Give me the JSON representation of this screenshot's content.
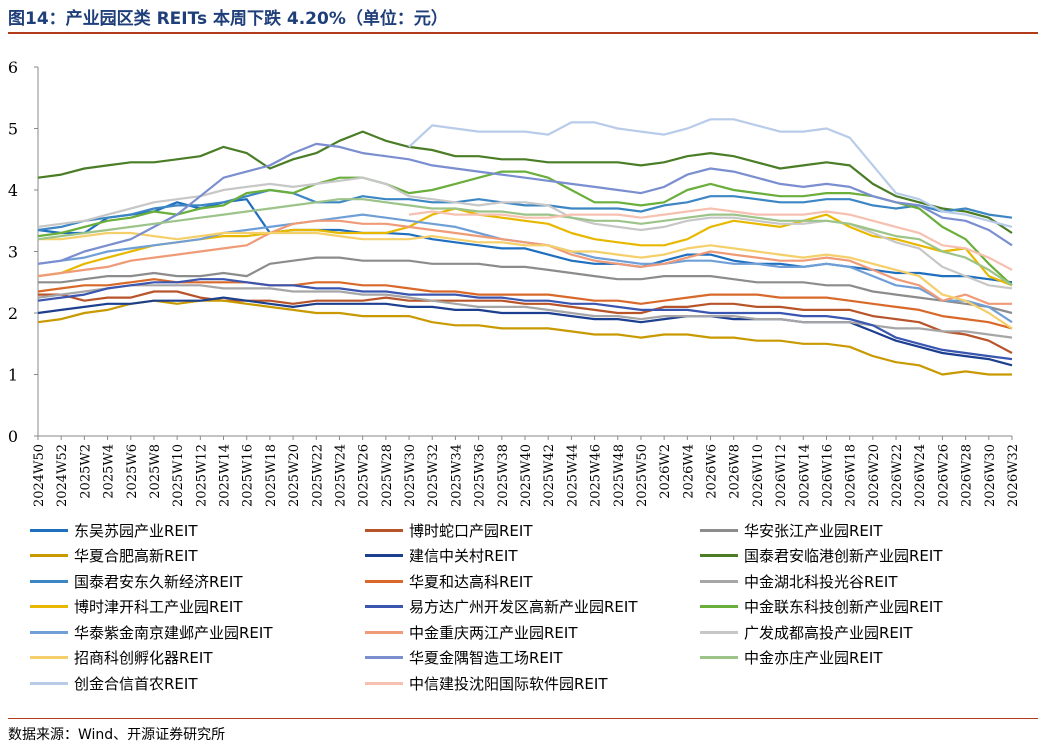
{
  "header": {
    "title": "图14：产业园区类 REITs 本周下跌 4.20%（单位：元）"
  },
  "footer": {
    "source": "数据来源：Wind、开源证券研究所"
  },
  "chart_data": {
    "type": "line",
    "title": "图14：产业园区类 REITs 本周下跌 4.20%（单位：元）",
    "xlabel": "",
    "ylabel": "",
    "ylim": [
      0,
      6
    ],
    "yticks": [
      "0",
      "1",
      "2",
      "3",
      "4",
      "5",
      "6"
    ],
    "xlabels": [
      "2024W50",
      "2024W52",
      "2025W2",
      "2025W4",
      "2025W6",
      "2025W8",
      "2025W10",
      "2025W12",
      "2025W14",
      "2025W16",
      "2025W18",
      "2025W20",
      "2025W22",
      "2025W24",
      "2025W26",
      "2025W28",
      "2025W30",
      "2025W32",
      "2025W34",
      "2025W36",
      "2025W38",
      "2025W40",
      "2025W42",
      "2025W44",
      "2025W46",
      "2025W48",
      "2025W50",
      "2026W2",
      "2026W4",
      "2026W6",
      "2026W8",
      "2026W10",
      "2026W12",
      "2026W14",
      "2026W16",
      "2026W18",
      "2026W20",
      "2026W22",
      "2026W24",
      "2026W26",
      "2026W28",
      "2026W30",
      "2026W32"
    ],
    "grid": false,
    "legend_position": "bottom",
    "series": [
      {
        "name": "东吴苏园产业REIT",
        "color": "#1f6fbf",
        "values": [
          3.35,
          3.3,
          3.3,
          3.55,
          3.6,
          3.65,
          3.8,
          3.7,
          3.8,
          3.85,
          3.3,
          3.35,
          3.35,
          3.35,
          3.3,
          3.3,
          3.28,
          3.2,
          3.15,
          3.1,
          3.05,
          3.05,
          2.95,
          2.85,
          2.8,
          2.8,
          2.75,
          2.85,
          2.95,
          2.95,
          2.85,
          2.8,
          2.8,
          2.75,
          2.8,
          2.75,
          2.7,
          2.65,
          2.65,
          2.6,
          2.6,
          2.55,
          2.5
        ]
      },
      {
        "name": "博时蛇口产园REIT",
        "color": "#b8542a",
        "values": [
          2.3,
          2.3,
          2.2,
          2.25,
          2.25,
          2.35,
          2.35,
          2.25,
          2.2,
          2.2,
          2.2,
          2.15,
          2.2,
          2.2,
          2.2,
          2.25,
          2.2,
          2.2,
          2.2,
          2.2,
          2.2,
          2.15,
          2.15,
          2.1,
          2.05,
          2.0,
          2.0,
          2.1,
          2.1,
          2.15,
          2.15,
          2.1,
          2.1,
          2.05,
          2.05,
          2.05,
          1.95,
          1.9,
          1.85,
          1.7,
          1.65,
          1.55,
          1.35
        ]
      },
      {
        "name": "华安张江产业园REIT",
        "color": "#8c8c8c",
        "values": [
          2.5,
          2.5,
          2.55,
          2.6,
          2.6,
          2.65,
          2.6,
          2.6,
          2.65,
          2.6,
          2.8,
          2.85,
          2.9,
          2.9,
          2.85,
          2.85,
          2.85,
          2.8,
          2.8,
          2.8,
          2.75,
          2.75,
          2.7,
          2.65,
          2.6,
          2.55,
          2.55,
          2.6,
          2.6,
          2.6,
          2.55,
          2.5,
          2.5,
          2.5,
          2.45,
          2.45,
          2.35,
          2.3,
          2.25,
          2.2,
          2.15,
          2.1,
          2.0
        ]
      },
      {
        "name": "华夏合肥高新REIT",
        "color": "#c99a00",
        "values": [
          1.85,
          1.9,
          2.0,
          2.05,
          2.15,
          2.2,
          2.15,
          2.2,
          2.2,
          2.15,
          2.1,
          2.05,
          2.0,
          2.0,
          1.95,
          1.95,
          1.95,
          1.85,
          1.8,
          1.8,
          1.75,
          1.75,
          1.75,
          1.7,
          1.65,
          1.65,
          1.6,
          1.65,
          1.65,
          1.6,
          1.6,
          1.55,
          1.55,
          1.5,
          1.5,
          1.45,
          1.3,
          1.2,
          1.15,
          1.0,
          1.05,
          1.0,
          1.0
        ]
      },
      {
        "name": "建信中关村REIT",
        "color": "#1d3f8f",
        "values": [
          2.0,
          2.05,
          2.1,
          2.15,
          2.15,
          2.2,
          2.2,
          2.2,
          2.25,
          2.2,
          2.15,
          2.1,
          2.15,
          2.15,
          2.15,
          2.15,
          2.1,
          2.1,
          2.05,
          2.05,
          2.0,
          2.0,
          2.0,
          1.95,
          1.9,
          1.9,
          1.85,
          1.9,
          1.95,
          1.95,
          1.9,
          1.9,
          1.9,
          1.85,
          1.85,
          1.85,
          1.7,
          1.55,
          1.45,
          1.35,
          1.3,
          1.25,
          1.15
        ]
      },
      {
        "name": "国泰君安临港创新产业园REIT",
        "color": "#4a7d26",
        "values": [
          4.2,
          4.25,
          4.35,
          4.4,
          4.45,
          4.45,
          4.5,
          4.55,
          4.7,
          4.6,
          4.35,
          4.5,
          4.6,
          4.8,
          4.95,
          4.8,
          4.7,
          4.65,
          4.55,
          4.55,
          4.5,
          4.5,
          4.45,
          4.45,
          4.45,
          4.45,
          4.4,
          4.45,
          4.55,
          4.6,
          4.55,
          4.45,
          4.35,
          4.4,
          4.45,
          4.4,
          4.1,
          3.9,
          3.8,
          3.7,
          3.65,
          3.55,
          3.3
        ]
      },
      {
        "name": "国泰君安东久新经济REIT",
        "color": "#3c86c4",
        "values": [
          3.35,
          3.4,
          3.5,
          3.55,
          3.6,
          3.7,
          3.75,
          3.75,
          3.8,
          3.9,
          4.0,
          3.95,
          3.8,
          3.8,
          3.9,
          3.85,
          3.85,
          3.8,
          3.8,
          3.85,
          3.8,
          3.75,
          3.75,
          3.7,
          3.7,
          3.7,
          3.65,
          3.75,
          3.8,
          3.9,
          3.9,
          3.85,
          3.8,
          3.8,
          3.85,
          3.85,
          3.75,
          3.7,
          3.75,
          3.65,
          3.7,
          3.6,
          3.55
        ]
      },
      {
        "name": "华夏和达高科REIT",
        "color": "#d9692a",
        "values": [
          2.35,
          2.4,
          2.45,
          2.45,
          2.5,
          2.55,
          2.5,
          2.5,
          2.5,
          2.5,
          2.45,
          2.45,
          2.5,
          2.5,
          2.45,
          2.45,
          2.4,
          2.35,
          2.35,
          2.3,
          2.3,
          2.3,
          2.3,
          2.25,
          2.2,
          2.2,
          2.15,
          2.2,
          2.25,
          2.3,
          2.3,
          2.3,
          2.25,
          2.25,
          2.25,
          2.2,
          2.15,
          2.1,
          2.05,
          1.95,
          1.9,
          1.85,
          1.75
        ]
      },
      {
        "name": "中金湖北科投光谷REIT",
        "color": "#a6a6a6",
        "values": [
          2.25,
          2.3,
          2.35,
          2.4,
          2.45,
          2.45,
          2.45,
          2.45,
          2.4,
          2.4,
          2.4,
          2.35,
          2.35,
          2.35,
          2.3,
          2.3,
          2.25,
          2.2,
          2.15,
          2.1,
          2.1,
          2.1,
          2.05,
          2.0,
          1.95,
          1.95,
          1.9,
          1.95,
          1.95,
          1.95,
          1.95,
          1.9,
          1.9,
          1.85,
          1.85,
          1.85,
          1.8,
          1.75,
          1.75,
          1.7,
          1.7,
          1.65,
          1.6
        ]
      },
      {
        "name": "博时津开科工产业园REIT",
        "color": "#e8b800",
        "values": [
          2.6,
          2.65,
          2.8,
          2.9,
          3.0,
          3.1,
          3.15,
          3.2,
          3.25,
          3.25,
          3.3,
          3.35,
          3.35,
          3.3,
          3.3,
          3.3,
          3.4,
          3.6,
          3.7,
          3.6,
          3.55,
          3.5,
          3.45,
          3.3,
          3.2,
          3.15,
          3.1,
          3.1,
          3.2,
          3.4,
          3.5,
          3.45,
          3.4,
          3.5,
          3.6,
          3.4,
          3.25,
          3.2,
          3.1,
          3.0,
          3.05,
          2.6,
          2.45
        ]
      },
      {
        "name": "易方达广州开发区高新产业园REIT",
        "color": "#3a56b0",
        "values": [
          2.2,
          2.25,
          2.3,
          2.4,
          2.45,
          2.5,
          2.5,
          2.55,
          2.55,
          2.5,
          2.45,
          2.45,
          2.4,
          2.4,
          2.35,
          2.35,
          2.3,
          2.3,
          2.3,
          2.25,
          2.25,
          2.2,
          2.2,
          2.15,
          2.15,
          2.1,
          2.05,
          2.05,
          2.05,
          2.0,
          2.0,
          2.0,
          2.0,
          1.95,
          1.95,
          1.9,
          1.8,
          1.6,
          1.5,
          1.4,
          1.35,
          1.3,
          1.25
        ]
      },
      {
        "name": "中金联东科技创新产业园REIT",
        "color": "#6aae3b",
        "values": [
          3.25,
          3.3,
          3.4,
          3.5,
          3.55,
          3.65,
          3.6,
          3.7,
          3.75,
          3.95,
          4.0,
          3.95,
          4.1,
          4.2,
          4.2,
          4.1,
          3.95,
          4.0,
          4.1,
          4.2,
          4.3,
          4.3,
          4.2,
          4.0,
          3.8,
          3.8,
          3.75,
          3.8,
          4.0,
          4.1,
          4.0,
          3.95,
          3.9,
          3.9,
          3.95,
          3.95,
          3.9,
          3.8,
          3.7,
          3.4,
          3.2,
          2.8,
          2.45
        ]
      },
      {
        "name": "华泰紫金南京建邺产业园REIT",
        "color": "#6f9fd6",
        "values": [
          2.8,
          2.85,
          2.9,
          3.0,
          3.05,
          3.1,
          3.15,
          3.2,
          3.3,
          3.35,
          3.4,
          3.45,
          3.5,
          3.55,
          3.6,
          3.55,
          3.5,
          3.45,
          3.4,
          3.3,
          3.2,
          3.15,
          3.1,
          3.0,
          2.9,
          2.85,
          2.8,
          2.8,
          2.85,
          2.85,
          2.8,
          2.8,
          2.75,
          2.75,
          2.8,
          2.75,
          2.6,
          2.45,
          2.4,
          2.2,
          2.2,
          2.1,
          1.85
        ]
      },
      {
        "name": "中金重庆两江产业园REIT",
        "color": "#ef9b78",
        "values": [
          2.6,
          2.65,
          2.7,
          2.75,
          2.85,
          2.9,
          2.95,
          3.0,
          3.05,
          3.1,
          3.3,
          3.45,
          3.5,
          3.5,
          3.45,
          3.45,
          3.4,
          3.35,
          3.3,
          3.25,
          3.2,
          3.15,
          3.1,
          2.95,
          2.85,
          2.8,
          2.75,
          2.8,
          2.9,
          3.0,
          2.95,
          2.9,
          2.85,
          2.85,
          2.9,
          2.85,
          2.7,
          2.55,
          2.45,
          2.2,
          2.3,
          2.15,
          2.15
        ]
      },
      {
        "name": "广发成都高投产业园REIT",
        "color": "#c7c7c7",
        "values": [
          3.4,
          3.45,
          3.5,
          3.6,
          3.7,
          3.8,
          3.85,
          3.9,
          4.0,
          4.05,
          4.1,
          4.05,
          4.1,
          4.15,
          4.2,
          4.1,
          3.9,
          3.85,
          3.8,
          3.75,
          3.8,
          3.8,
          3.75,
          3.55,
          3.45,
          3.4,
          3.35,
          3.4,
          3.5,
          3.55,
          3.55,
          3.5,
          3.45,
          3.45,
          3.5,
          3.45,
          3.3,
          3.15,
          3.05,
          2.75,
          2.6,
          2.45,
          2.4
        ]
      },
      {
        "name": "招商科创孵化器REIT",
        "color": "#f5cf6a",
        "values": [
          3.2,
          3.2,
          3.25,
          3.3,
          3.3,
          3.25,
          3.2,
          3.25,
          3.3,
          3.3,
          3.3,
          3.3,
          3.3,
          3.25,
          3.2,
          3.2,
          3.2,
          3.25,
          3.2,
          3.15,
          3.15,
          3.1,
          3.1,
          3.0,
          3.0,
          2.95,
          2.9,
          2.95,
          3.05,
          3.1,
          3.05,
          3.0,
          2.95,
          2.9,
          2.95,
          2.9,
          2.8,
          2.7,
          2.6,
          2.3,
          2.2,
          2.0,
          1.75
        ]
      },
      {
        "name": "华夏金隅智造工场REIT",
        "color": "#7a8ed0",
        "values": [
          2.8,
          2.85,
          3.0,
          3.1,
          3.2,
          3.4,
          3.6,
          3.9,
          4.2,
          4.3,
          4.4,
          4.6,
          4.75,
          4.7,
          4.6,
          4.55,
          4.5,
          4.4,
          4.35,
          4.3,
          4.25,
          4.2,
          4.15,
          4.1,
          4.05,
          4.0,
          3.95,
          4.05,
          4.25,
          4.35,
          4.3,
          4.2,
          4.1,
          4.05,
          4.1,
          4.05,
          3.9,
          3.8,
          3.75,
          3.55,
          3.5,
          3.35,
          3.1
        ]
      },
      {
        "name": "中金亦庄产业园REIT",
        "color": "#9cc489",
        "values": [
          3.2,
          3.25,
          3.3,
          3.35,
          3.4,
          3.45,
          3.5,
          3.55,
          3.6,
          3.65,
          3.7,
          3.75,
          3.8,
          3.85,
          3.85,
          3.8,
          3.75,
          3.7,
          3.7,
          3.65,
          3.65,
          3.6,
          3.6,
          3.55,
          3.5,
          3.5,
          3.45,
          3.5,
          3.55,
          3.6,
          3.6,
          3.55,
          3.5,
          3.5,
          3.5,
          3.45,
          3.35,
          3.25,
          3.2,
          3.0,
          2.9,
          2.7,
          2.45
        ]
      },
      {
        "name": "创金合信首农REIT",
        "color": "#b8ccea",
        "values": [
          null,
          null,
          null,
          null,
          null,
          null,
          null,
          null,
          null,
          null,
          null,
          null,
          null,
          null,
          null,
          null,
          4.7,
          5.05,
          5.0,
          4.95,
          4.95,
          4.95,
          4.9,
          5.1,
          5.1,
          5.0,
          4.95,
          4.9,
          5.0,
          5.15,
          5.15,
          5.05,
          4.95,
          4.95,
          5.0,
          4.85,
          4.4,
          3.95,
          3.85,
          3.65,
          3.6,
          3.5,
          3.4
        ]
      },
      {
        "name": "中信建投沈阳国际软件园REIT",
        "color": "#f6c1b0",
        "values": [
          null,
          null,
          null,
          null,
          null,
          null,
          null,
          null,
          null,
          null,
          null,
          null,
          null,
          null,
          null,
          null,
          3.6,
          3.65,
          3.6,
          3.6,
          3.6,
          3.55,
          3.55,
          3.6,
          3.6,
          3.6,
          3.55,
          3.6,
          3.65,
          3.7,
          3.65,
          3.6,
          3.6,
          3.6,
          3.65,
          3.6,
          3.5,
          3.4,
          3.3,
          3.1,
          3.05,
          2.9,
          2.7
        ]
      }
    ]
  }
}
